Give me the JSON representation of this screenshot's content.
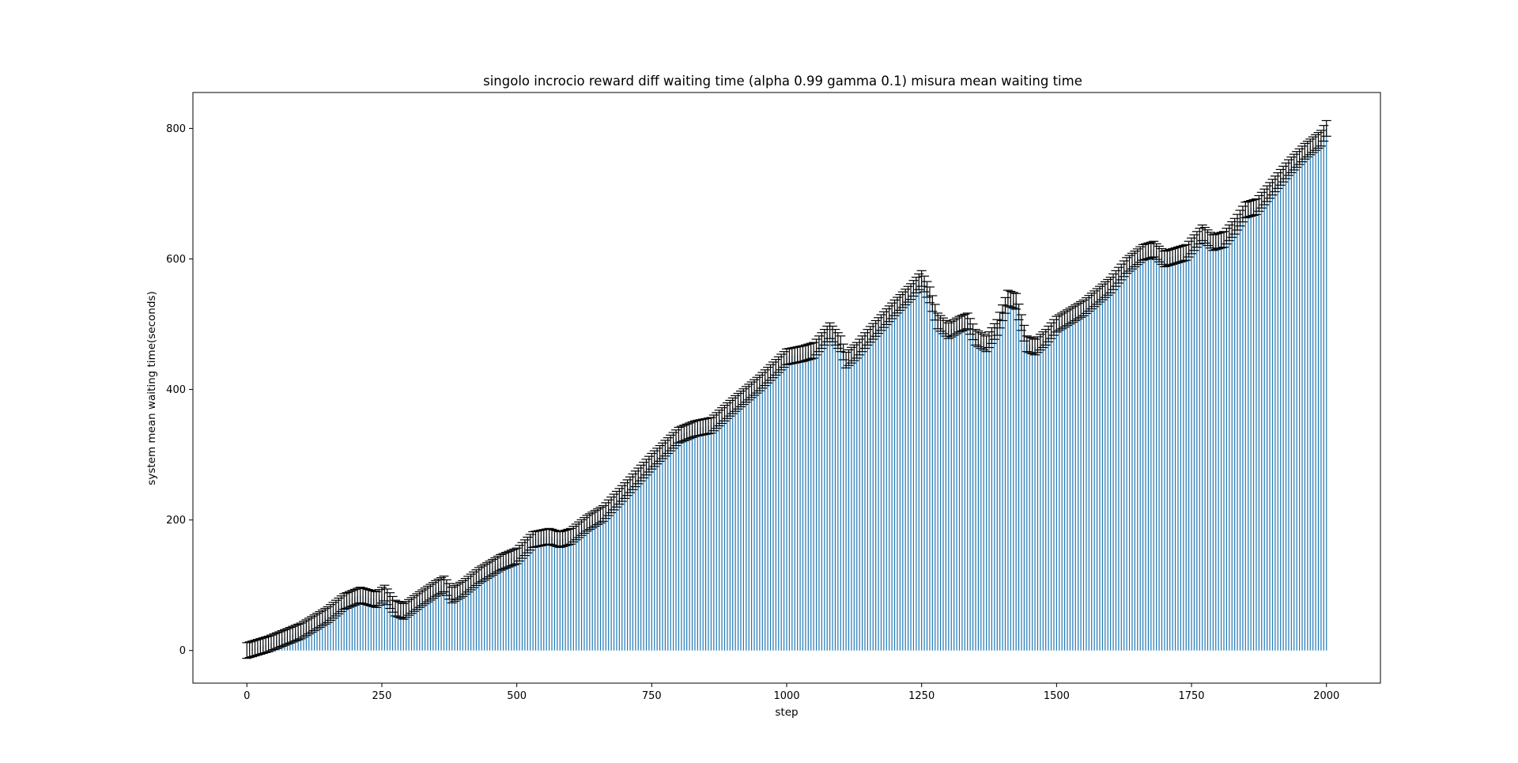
{
  "chart_data": {
    "type": "bar",
    "title": "singolo incrocio reward diff waiting time (alpha 0.99 gamma 0.1) misura mean waiting time",
    "xlabel": "step",
    "ylabel": "system mean waiting time(seconds)",
    "xlim": [
      -100,
      2100
    ],
    "ylim": [
      -50,
      855
    ],
    "x_ticks": [
      0,
      250,
      500,
      750,
      1000,
      1250,
      1500,
      1750,
      2000
    ],
    "y_ticks": [
      0,
      200,
      400,
      600,
      800
    ],
    "grid": false,
    "legend": "none",
    "bar_color": "#1f77b4",
    "errorbar_color": "#000000",
    "error_halfwidth": 12,
    "x_step": 5,
    "x_start": 0,
    "keypoints": [
      [
        0,
        0
      ],
      [
        40,
        10
      ],
      [
        100,
        30
      ],
      [
        150,
        55
      ],
      [
        180,
        75
      ],
      [
        210,
        85
      ],
      [
        240,
        78
      ],
      [
        255,
        88
      ],
      [
        275,
        65
      ],
      [
        290,
        60
      ],
      [
        320,
        78
      ],
      [
        350,
        95
      ],
      [
        365,
        102
      ],
      [
        380,
        85
      ],
      [
        400,
        95
      ],
      [
        430,
        115
      ],
      [
        470,
        135
      ],
      [
        500,
        145
      ],
      [
        530,
        170
      ],
      [
        560,
        175
      ],
      [
        580,
        170
      ],
      [
        600,
        175
      ],
      [
        630,
        195
      ],
      [
        660,
        210
      ],
      [
        700,
        245
      ],
      [
        750,
        290
      ],
      [
        800,
        330
      ],
      [
        830,
        340
      ],
      [
        860,
        345
      ],
      [
        900,
        375
      ],
      [
        950,
        410
      ],
      [
        1000,
        450
      ],
      [
        1030,
        455
      ],
      [
        1050,
        460
      ],
      [
        1080,
        490
      ],
      [
        1100,
        470
      ],
      [
        1110,
        445
      ],
      [
        1130,
        460
      ],
      [
        1150,
        480
      ],
      [
        1200,
        525
      ],
      [
        1230,
        550
      ],
      [
        1250,
        570
      ],
      [
        1265,
        545
      ],
      [
        1280,
        505
      ],
      [
        1300,
        490
      ],
      [
        1320,
        500
      ],
      [
        1335,
        505
      ],
      [
        1350,
        480
      ],
      [
        1370,
        470
      ],
      [
        1390,
        495
      ],
      [
        1410,
        540
      ],
      [
        1425,
        535
      ],
      [
        1445,
        470
      ],
      [
        1460,
        465
      ],
      [
        1480,
        480
      ],
      [
        1500,
        500
      ],
      [
        1550,
        525
      ],
      [
        1600,
        560
      ],
      [
        1630,
        590
      ],
      [
        1660,
        610
      ],
      [
        1680,
        615
      ],
      [
        1700,
        600
      ],
      [
        1740,
        610
      ],
      [
        1770,
        640
      ],
      [
        1790,
        625
      ],
      [
        1810,
        630
      ],
      [
        1830,
        650
      ],
      [
        1850,
        675
      ],
      [
        1870,
        680
      ],
      [
        1880,
        690
      ],
      [
        1900,
        710
      ],
      [
        1930,
        740
      ],
      [
        1960,
        765
      ],
      [
        1990,
        785
      ],
      [
        2000,
        800
      ]
    ]
  }
}
